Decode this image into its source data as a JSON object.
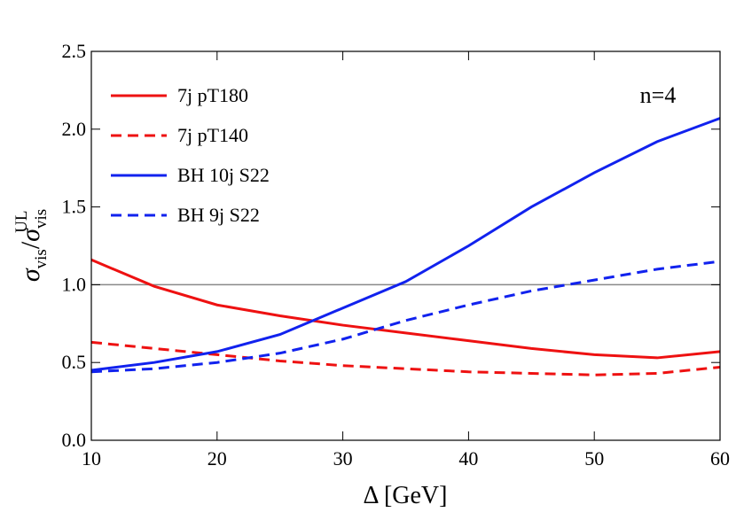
{
  "chart_data": {
    "type": "line",
    "xlabel": "Δ [GeV]",
    "ylabel": {
      "num": "σ",
      "num_sub": "vis",
      "slash": "/",
      "den": "σ",
      "den_sub": "vis",
      "den_sup": "UL"
    },
    "annotation": "n=4",
    "reference_line": 1.0,
    "x": [
      10,
      15,
      20,
      25,
      30,
      35,
      40,
      45,
      50,
      55,
      60
    ],
    "series": [
      {
        "name": "7j pT180",
        "color": "#ee1111",
        "style": "solid",
        "values": [
          1.16,
          0.99,
          0.87,
          0.8,
          0.74,
          0.69,
          0.64,
          0.59,
          0.55,
          0.53,
          0.57
        ]
      },
      {
        "name": "7j pT140",
        "color": "#ee1111",
        "style": "dashed",
        "values": [
          0.63,
          0.59,
          0.55,
          0.51,
          0.48,
          0.46,
          0.44,
          0.43,
          0.42,
          0.43,
          0.47
        ]
      },
      {
        "name": "BH 10j S22",
        "color": "#1122ee",
        "style": "solid",
        "values": [
          0.45,
          0.5,
          0.57,
          0.68,
          0.85,
          1.02,
          1.25,
          1.5,
          1.72,
          1.92,
          2.07
        ]
      },
      {
        "name": "BH 9j S22",
        "color": "#1122ee",
        "style": "dashed",
        "values": [
          0.44,
          0.46,
          0.5,
          0.56,
          0.65,
          0.77,
          0.87,
          0.96,
          1.03,
          1.1,
          1.15
        ]
      }
    ],
    "xlim": [
      10,
      60
    ],
    "xticks": [
      10,
      20,
      30,
      40,
      50,
      60
    ],
    "ylim": [
      0,
      2.5
    ],
    "yticks": [
      {
        "value": 0,
        "label": "0.0"
      },
      {
        "value": 0.5,
        "label": "0.5"
      },
      {
        "value": 1,
        "label": "1.0"
      },
      {
        "value": 1.5,
        "label": "1.5"
      },
      {
        "value": 2,
        "label": "2.0"
      },
      {
        "value": 2.5,
        "label": "2.5"
      }
    ],
    "legend": "upper-left"
  }
}
